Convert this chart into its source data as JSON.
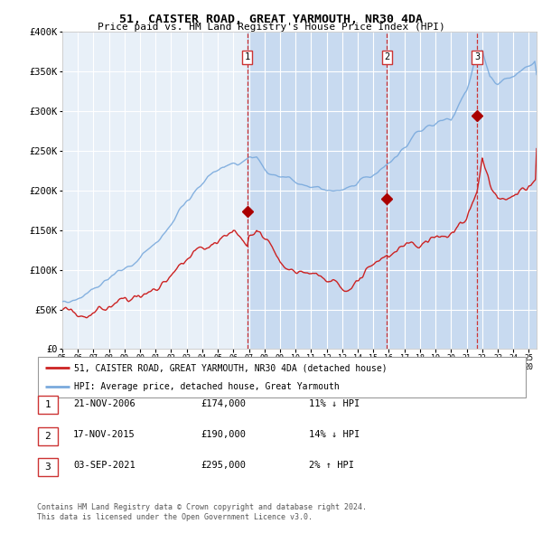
{
  "title": "51, CAISTER ROAD, GREAT YARMOUTH, NR30 4DA",
  "subtitle": "Price paid vs. HM Land Registry's House Price Index (HPI)",
  "legend_line1": "51, CAISTER ROAD, GREAT YARMOUTH, NR30 4DA (detached house)",
  "legend_line2": "HPI: Average price, detached house, Great Yarmouth",
  "footer1": "Contains HM Land Registry data © Crown copyright and database right 2024.",
  "footer2": "This data is licensed under the Open Government Licence v3.0.",
  "transactions": [
    {
      "num": 1,
      "date": "21-NOV-2006",
      "price": 174000,
      "hpi_pct": "11%",
      "hpi_dir": "↓"
    },
    {
      "num": 2,
      "date": "17-NOV-2015",
      "price": 190000,
      "hpi_pct": "14%",
      "hpi_dir": "↓"
    },
    {
      "num": 3,
      "date": "03-SEP-2021",
      "price": 295000,
      "hpi_pct": "2%",
      "hpi_dir": "↑"
    }
  ],
  "transaction_dates_dec": [
    2006.89,
    2015.88,
    2021.67
  ],
  "transaction_prices": [
    174000,
    190000,
    295000
  ],
  "hpi_color": "#7aaadd",
  "price_color": "#cc2222",
  "marker_color": "#aa0000",
  "vline_color": "#cc3333",
  "plot_bg": "#e8f0f8",
  "shade_color": "#c8daf0",
  "ylim": [
    0,
    400000
  ],
  "xlim_start": 1995.0,
  "xlim_end": 2025.5,
  "yticks": [
    0,
    50000,
    100000,
    150000,
    200000,
    250000,
    300000,
    350000,
    400000
  ],
  "ytick_labels": [
    "£0",
    "£50K",
    "£100K",
    "£150K",
    "£200K",
    "£250K",
    "£300K",
    "£350K",
    "£400K"
  ],
  "xticks": [
    1995,
    1996,
    1997,
    1998,
    1999,
    2000,
    2001,
    2002,
    2003,
    2004,
    2005,
    2006,
    2007,
    2008,
    2009,
    2010,
    2011,
    2012,
    2013,
    2014,
    2015,
    2016,
    2017,
    2018,
    2019,
    2020,
    2021,
    2022,
    2023,
    2024,
    2025
  ]
}
